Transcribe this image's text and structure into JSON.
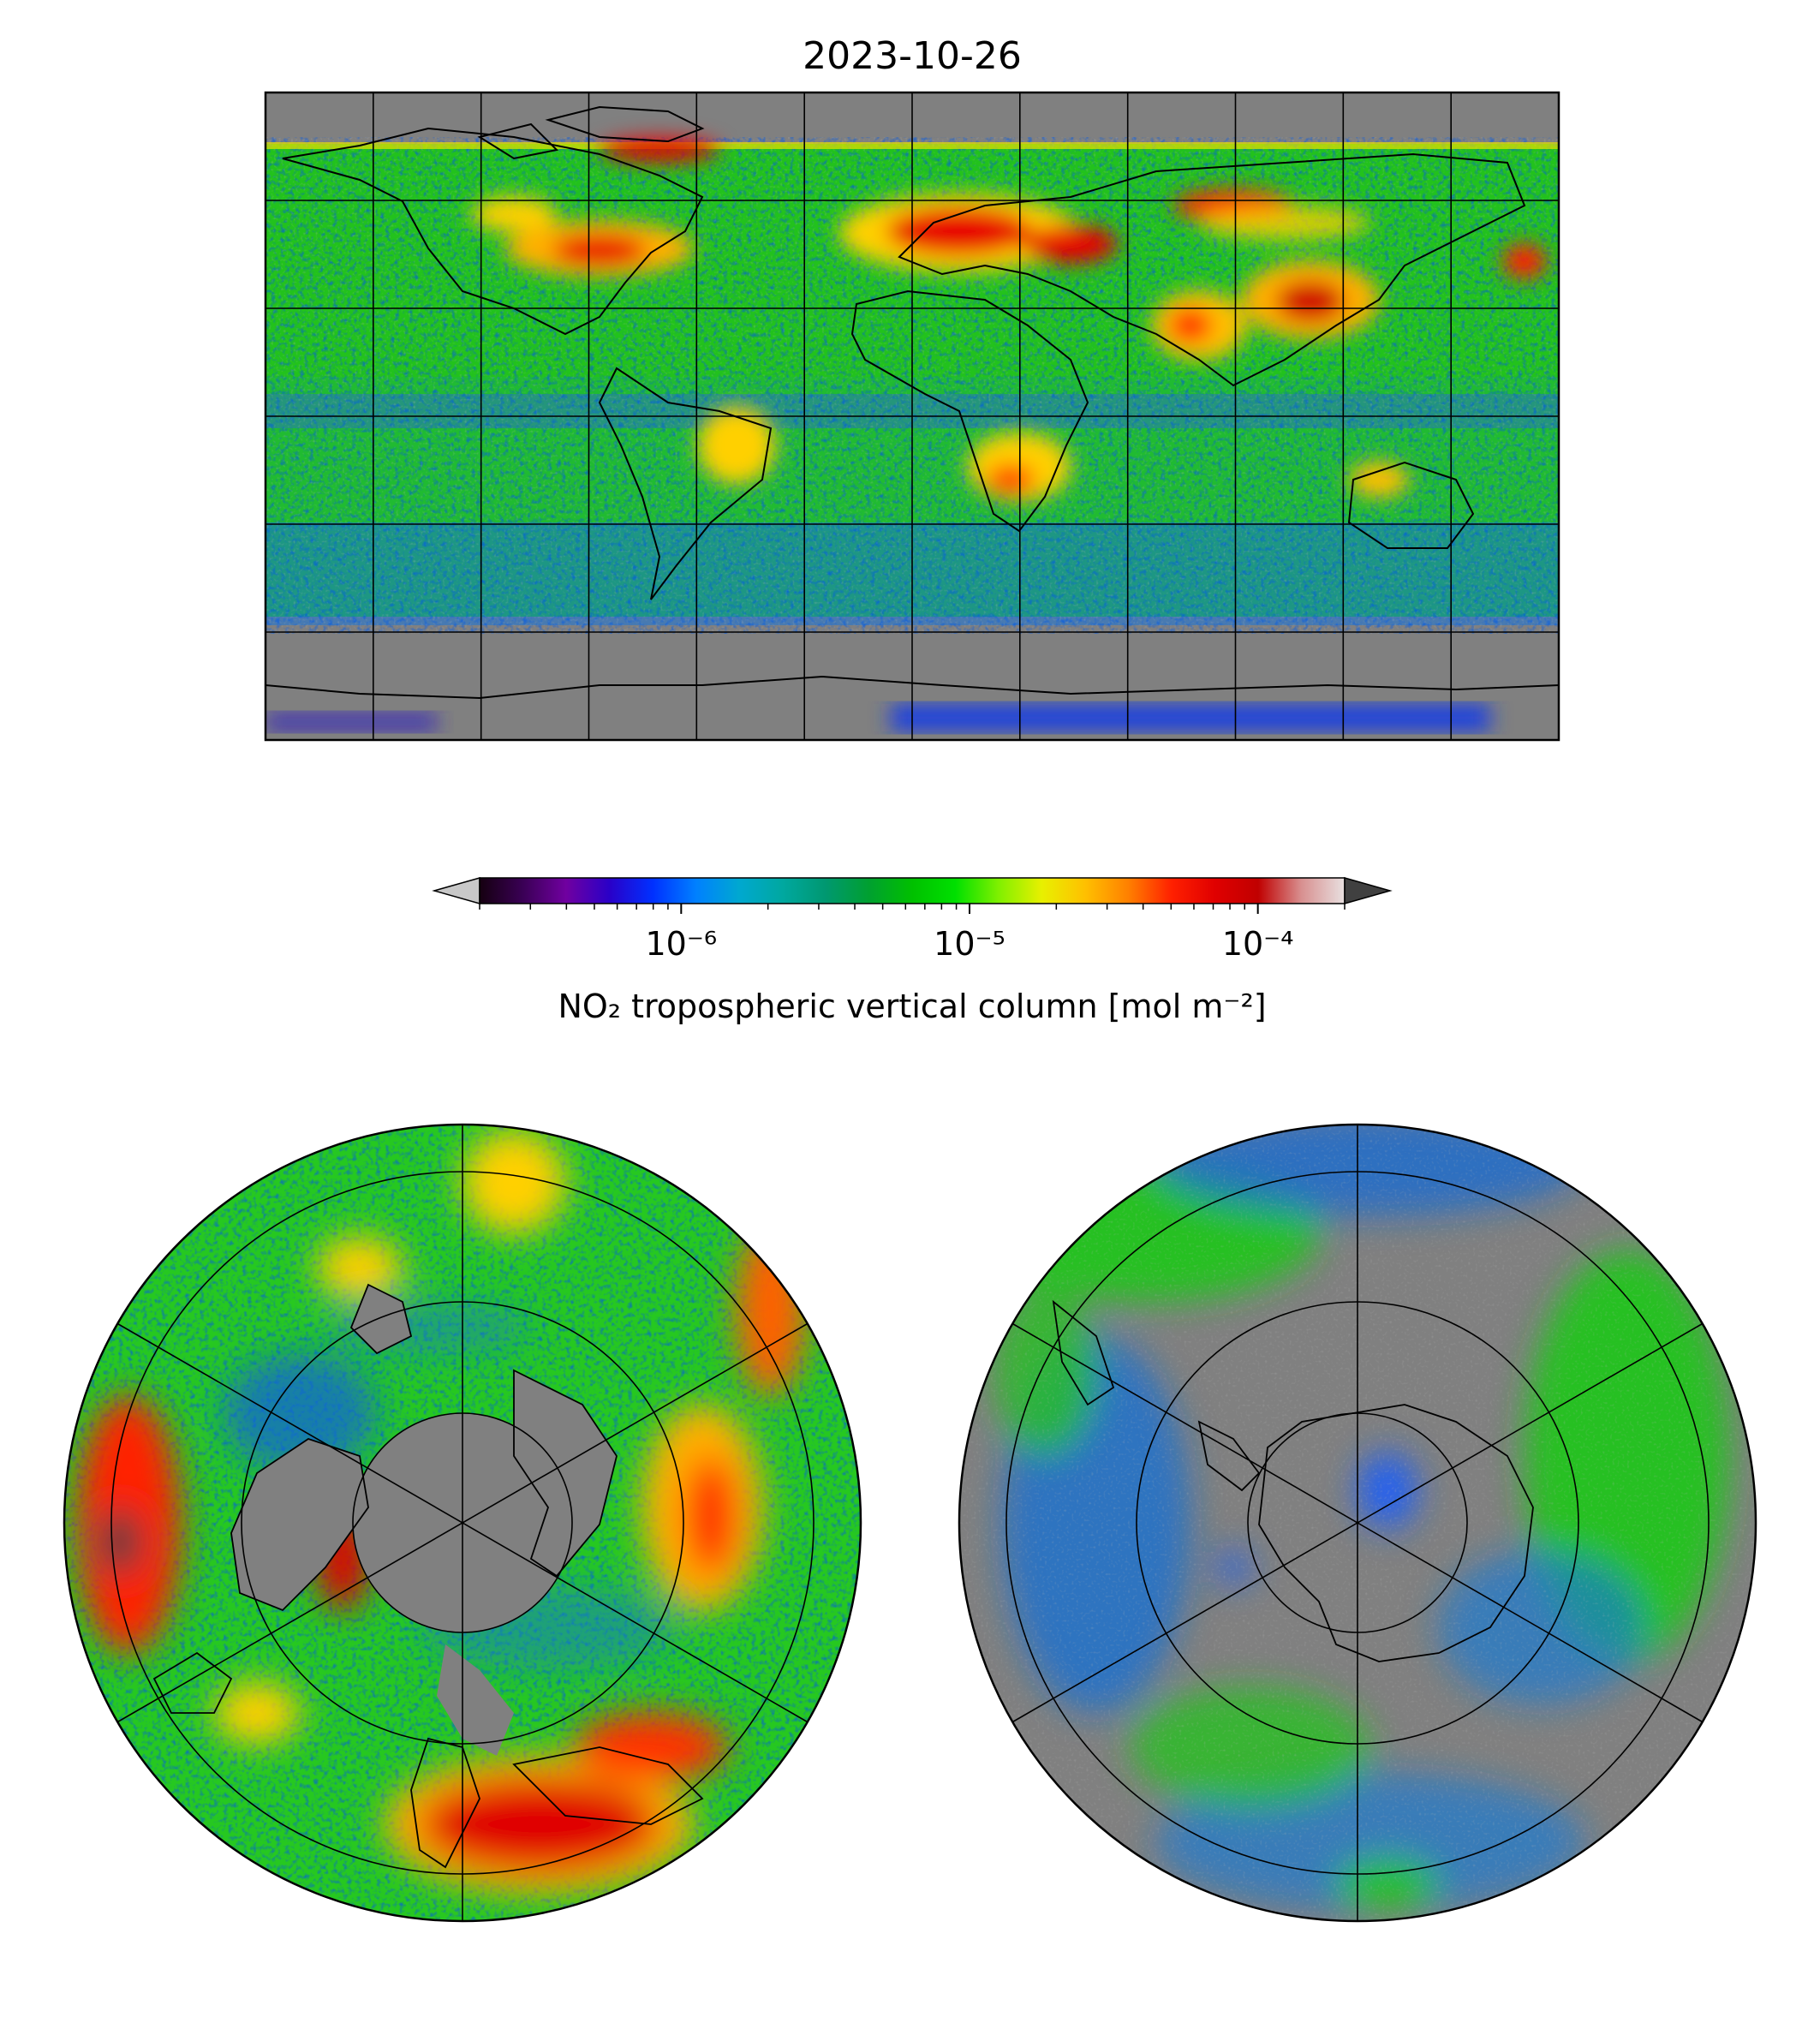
{
  "title": "2023-10-26",
  "colorbar": {
    "label": "NO₂ tropospheric vertical column [mol m⁻²]",
    "scale": "log",
    "range": [
      2e-07,
      0.0002
    ],
    "major_ticks": [
      {
        "value": 1e-06,
        "label": "10⁻⁶"
      },
      {
        "value": 1e-05,
        "label": "10⁻⁵"
      },
      {
        "value": 0.0001,
        "label": "10⁻⁴"
      }
    ],
    "extend": "both",
    "colormap": [
      "#150010",
      "#3a0055",
      "#7000a0",
      "#2a00c8",
      "#0030ff",
      "#0080ff",
      "#00a8d0",
      "#00a8a0",
      "#009870",
      "#00a030",
      "#00c000",
      "#00e000",
      "#80f000",
      "#e8f000",
      "#ffc000",
      "#ff8000",
      "#ff2000",
      "#e00000",
      "#c00000",
      "#d89090",
      "#e8e0e0"
    ],
    "under_color": "#c8c8c8",
    "over_color": "#404040"
  },
  "panels": [
    {
      "name": "global",
      "projection": "plate-carree"
    },
    {
      "name": "north-pole",
      "projection": "north-polar-stereographic"
    },
    {
      "name": "south-pole",
      "projection": "south-polar-stereographic"
    }
  ],
  "missing_color": "#808080"
}
